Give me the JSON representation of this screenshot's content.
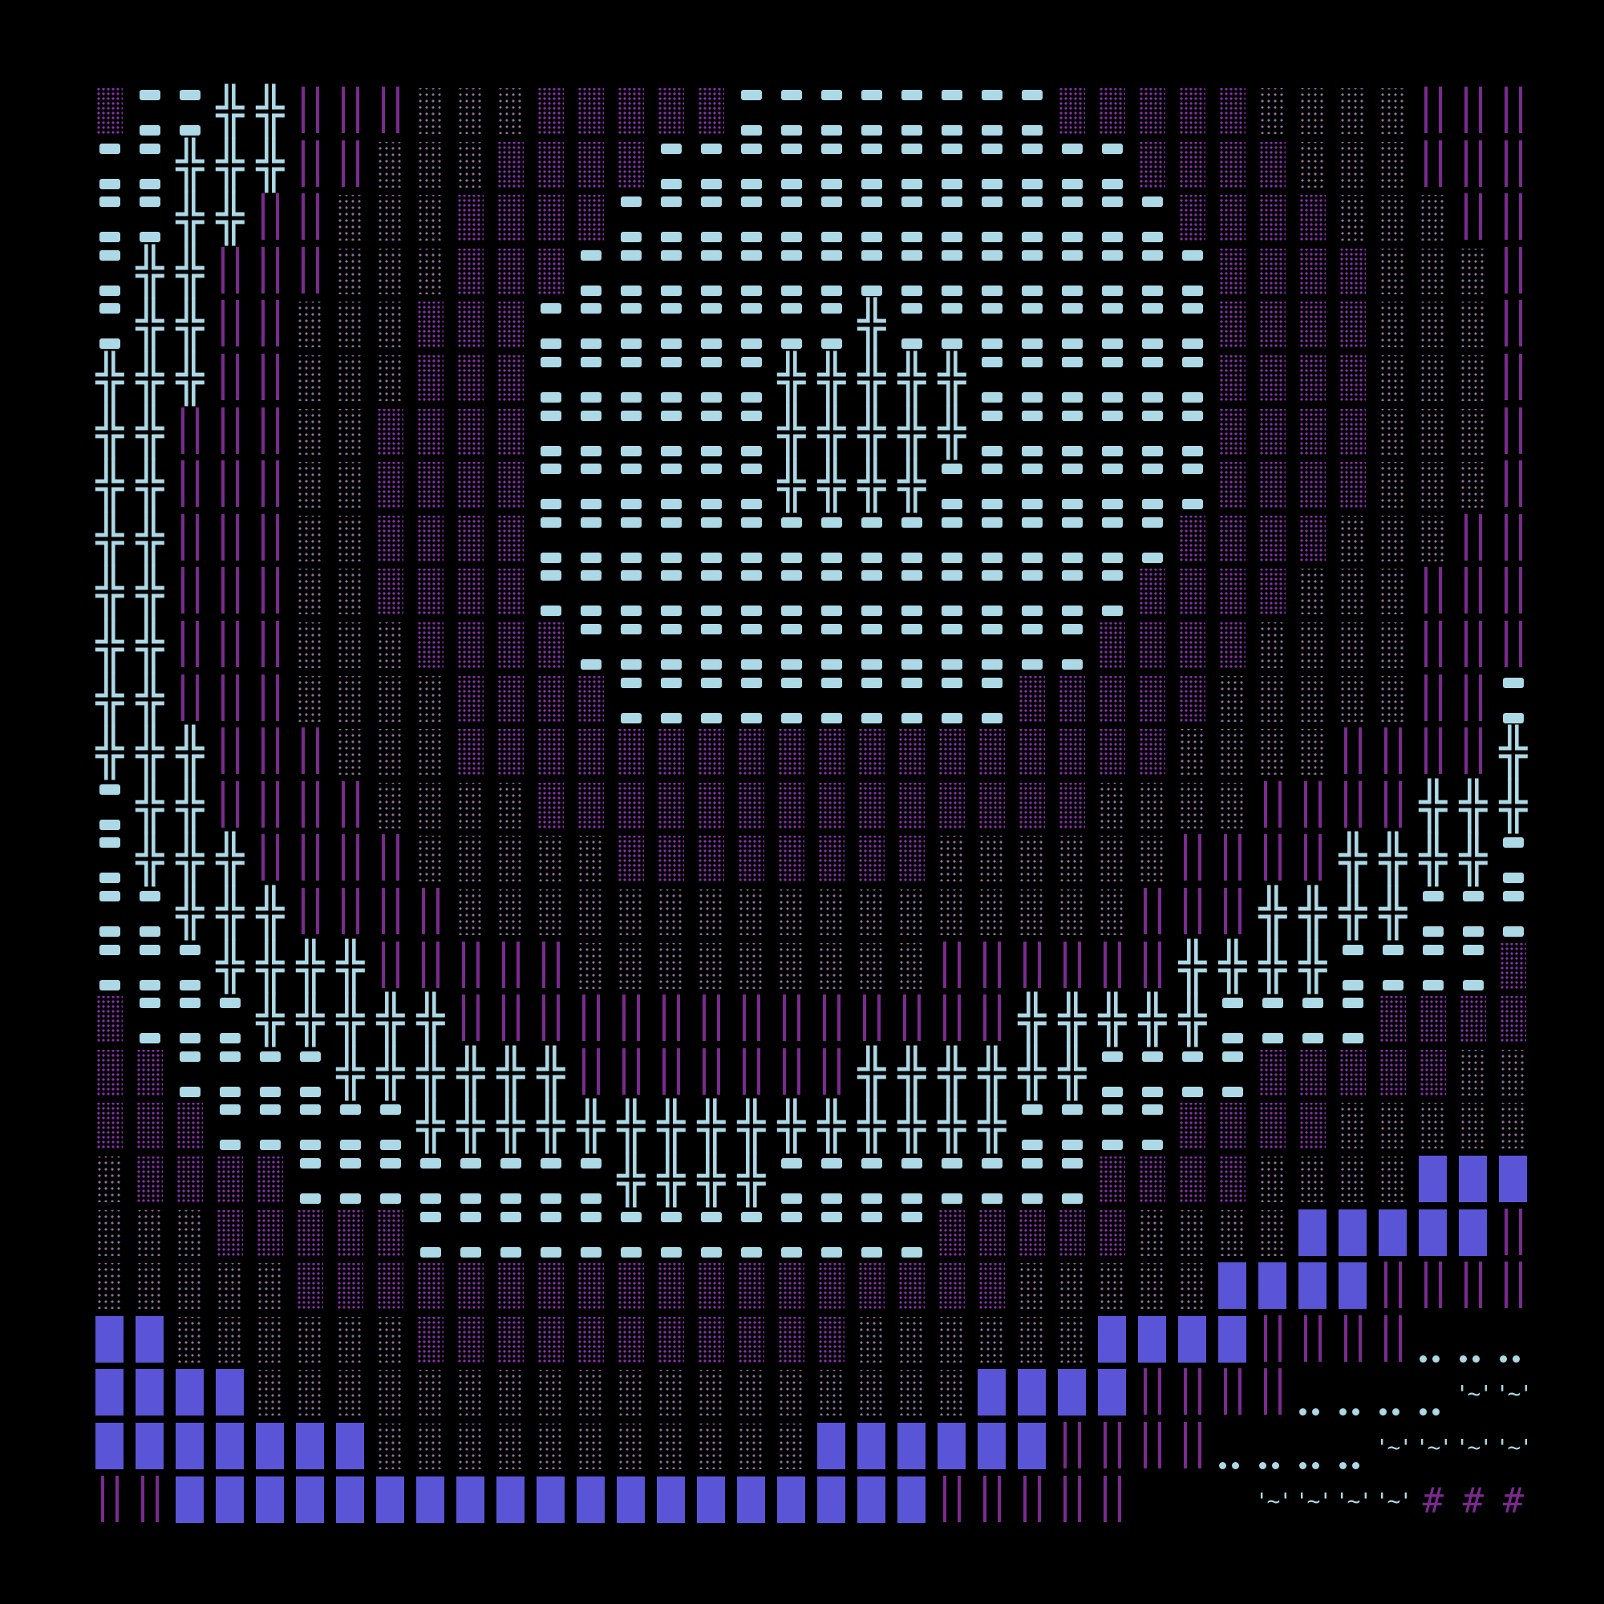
{
  "palette": {
    "background": "#000000",
    "light_blue": "#add8e6",
    "purple_bar": "#7b2a90",
    "purple_dots": "#8a2fb0",
    "gray_dots": "#8e6f9e",
    "solid_blue": "#5a55d6"
  },
  "glyphs": {
    "X": "╬",
    "T": "'~'",
    "H": "#"
  },
  "art": {
    "legend": {
      "B": "light-blue-dash-pair",
      "X": "cross-glyph",
      "|": "purple-double-bar",
      "P": "dense-purple-stipple",
      "G": "sparse-gray-stipple",
      "U": "solid-blue-block",
      "o": "dot-pair",
      "T": "quote-tilde",
      "H": "hash",
      ".": "blank"
    },
    "rows": [
      "PBBXX|||GGGPPPPPBBBBBBBBPPPPPGGGG|||",
      "BBXXX||GGGPPPPBBBBBBBBBBBBPPPPGGG|||",
      "BBXX||GGGPPPPBBBBBBBBBBBBBBPPPPGGG||",
      "BXX|||GGGPPPBBBBBBBBBBBBBBBBPPPPGGG|",
      "BXX||GGGPPPBBBBBBBBXBBBBBBBBPPPPGGG|",
      "XXX||GGGPPPBBBBBBXXXXXBBBBBBPPPPGGG|",
      "XX|||GGPPPPBBBBBBXXXXXBBBBBBPPPPGGG|",
      "XX|||GGPPPPBBBBBBXXXXBBBBBBBPPPPGGG|",
      "XX|||GGPPPPBBBBBBBBBBBBBBBBPPPPGGG||",
      "XX|||GGPPPPBBBBBBBBBBBBBBBPPPPGGG|||",
      "XX|||GGGPPPPBBBBBBBBBBBBBPPPPGGGG|||",
      "XX|||GGGGPPPPBBBBBBBBBBPPPPPGGGGG||B",
      "XXX|||GGGPPPPPPPPPPPPPPPPPPGGGG||||X",
      "BXX||||GGGGPPPPPPPPPPPPPPGGGG||||XXX",
      "BXXX||||GGGGGPPPPPPPPGGGGGG||||XXXXB",
      "BBXXX||||GGGGGGGGGGGGGGGGG|||XXXXBBB",
      "BBBXXXX|||||GGGGGGGGG||||||XXXXBBBBP",
      "PBBBXXXXX||||||||||||||XXXXXBBBBPPPP",
      "PPBBBBXXXXXX|||||||XXXXXXBBBBPPPPPGG",
      "PPPBBBBBXXXXXXXXXXXXXXXBBBBPPPPGGGGG",
      "GPPPPBBBBBBBBXXXXBBBBBBBBPPPPGGGGUUU",
      "GGGPPPPPBBBBBBBBBBBBBPPPPPGGGGUUUUU|",
      "GGGGGPPPPPPPPPPPPPPPPPPGGGGGUUUU||||",
      "UUGGGGGGPPPPPPPPPPPGGGGGGUUUU||||ooo",
      "UUUUGGGGGGGGGGGGGGGGGGUUUU||||ooooTT",
      "UUUUUUUGGGGGGGGGGGUUUUUU||||ooooTTTT",
      "||UUUUUUUUUUUUUUUUUUU|||||...TTTTHHH"
    ]
  }
}
